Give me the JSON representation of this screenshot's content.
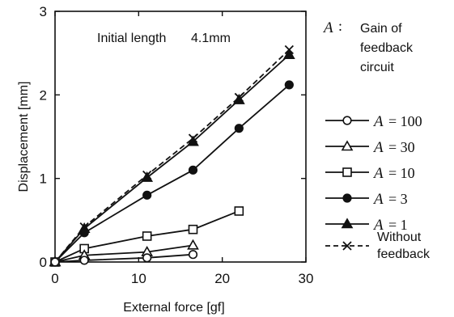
{
  "chart_data": {
    "type": "line",
    "title": "",
    "xlabel": "External force [gf]",
    "ylabel": "Displacement [mm]",
    "xlim": [
      0,
      30
    ],
    "ylim": [
      0,
      3
    ],
    "x_ticks": [
      0,
      10,
      20,
      30
    ],
    "y_ticks": [
      0,
      1,
      2,
      3
    ],
    "grid": false,
    "annotation": {
      "text": "Initial length",
      "value": "4.1mm"
    },
    "legend_title": {
      "symbol": "A",
      "colon": ":",
      "lines": [
        "Gain of",
        "feedback",
        "circuit"
      ]
    },
    "legend_position": "right",
    "series": [
      {
        "name": "A = 100",
        "symbol": "A",
        "value_label": "= 100",
        "marker": "open-circle",
        "line": "solid",
        "x": [
          0,
          3.5,
          11,
          16.5
        ],
        "y": [
          0,
          0.02,
          0.05,
          0.09
        ]
      },
      {
        "name": "A = 30",
        "symbol": "A",
        "value_label": "= 30",
        "marker": "open-triangle",
        "line": "solid",
        "x": [
          0,
          3.5,
          11,
          16.5
        ],
        "y": [
          0,
          0.08,
          0.12,
          0.2
        ]
      },
      {
        "name": "A = 10",
        "symbol": "A",
        "value_label": "= 10",
        "marker": "open-square",
        "line": "solid",
        "x": [
          0,
          3.5,
          11,
          16.5,
          22
        ],
        "y": [
          0,
          0.16,
          0.31,
          0.39,
          0.61
        ]
      },
      {
        "name": "A = 3",
        "symbol": "A",
        "value_label": "= 3",
        "marker": "filled-circle",
        "line": "solid",
        "x": [
          0,
          3.5,
          11,
          16.5,
          22,
          28
        ],
        "y": [
          0,
          0.35,
          0.8,
          1.1,
          1.6,
          2.12
        ]
      },
      {
        "name": "A = 1",
        "symbol": "A",
        "value_label": "= 1",
        "marker": "filled-triangle",
        "line": "solid",
        "x": [
          0,
          3.5,
          11,
          16.5,
          22,
          28
        ],
        "y": [
          0,
          0.4,
          1.01,
          1.44,
          1.94,
          2.48
        ]
      },
      {
        "name": "Without feedback",
        "lines": [
          "Without",
          "feedback"
        ],
        "marker": "cross",
        "line": "dashed",
        "x": [
          0,
          3.5,
          11,
          16.5,
          22,
          28
        ],
        "y": [
          0,
          0.42,
          1.04,
          1.48,
          1.97,
          2.54
        ]
      }
    ]
  }
}
